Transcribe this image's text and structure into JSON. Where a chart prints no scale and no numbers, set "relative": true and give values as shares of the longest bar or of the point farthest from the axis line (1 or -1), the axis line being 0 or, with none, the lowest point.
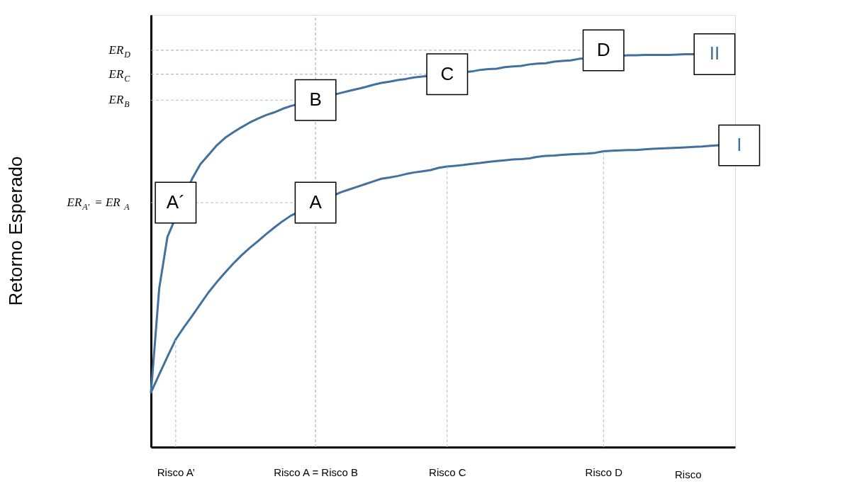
{
  "chart_data": {
    "type": "line",
    "relative": true,
    "xlabel": "Risco",
    "categories": [
      null,
      null,
      null,
      "Risco A’",
      null,
      null,
      null,
      null,
      null,
      null,
      null,
      null,
      null,
      null,
      null,
      null,
      null,
      null,
      null,
      null,
      "Risco A = Risco B",
      null,
      null,
      null,
      null,
      null,
      null,
      null,
      null,
      null,
      null,
      null,
      null,
      null,
      null,
      null,
      "Risco C",
      null,
      null,
      null,
      null,
      null,
      null,
      null,
      null,
      null,
      null,
      null,
      null,
      null,
      null,
      null,
      null,
      null,
      null,
      "Risco D",
      null,
      null,
      null,
      null,
      null,
      null,
      null,
      null,
      null,
      null,
      null,
      null,
      null,
      null,
      null,
      null
    ],
    "grid": false,
    "legend": false,
    "marker": "none",
    "line_style": "solid",
    "series": [
      {
        "name": "II",
        "color": "#41719c",
        "values": [
          0.139,
          0.404,
          0.535,
          null,
          null,
          0.683,
          0.72,
          0.744,
          0.768,
          0.787,
          0.801,
          0.814,
          0.826,
          0.836,
          0.845,
          0.852,
          0.861,
          0.868,
          null,
          null,
          null,
          null,
          null,
          0.901,
          0.906,
          0.911,
          0.916,
          0.922,
          0.927,
          0.93,
          0.934,
          0.937,
          0.941,
          0.943,
          null,
          null,
          null,
          null,
          null,
          0.956,
          0.96,
          0.962,
          0.963,
          0.967,
          0.969,
          0.97,
          0.974,
          0.976,
          0.977,
          0.981,
          0.983,
          0.984,
          0.988,
          null,
          null,
          null,
          null,
          null,
          0.997,
          0.997,
          0.998,
          0.998,
          0.998,
          0.998,
          0.999,
          1,
          1,
          null,
          null,
          null,
          null,
          null
        ]
      },
      {
        "name": "I",
        "color": "#41719c",
        "values": [
          0.139,
          0.185,
          0.23,
          0.274,
          0.305,
          0.334,
          0.364,
          0.394,
          0.42,
          0.444,
          0.467,
          0.488,
          0.507,
          0.524,
          0.542,
          0.559,
          0.575,
          0.589,
          null,
          null,
          null,
          null,
          null,
          0.648,
          0.655,
          0.662,
          0.669,
          0.676,
          0.683,
          0.686,
          0.69,
          0.695,
          0.699,
          0.702,
          0.705,
          0.711,
          0.714,
          0.716,
          0.718,
          0.721,
          0.723,
          0.726,
          0.728,
          0.73,
          0.732,
          0.733,
          0.735,
          0.739,
          0.741,
          0.742,
          0.744,
          0.745,
          0.746,
          0.747,
          0.749,
          0.753,
          0.754,
          0.755,
          0.756,
          0.756,
          0.758,
          0.759,
          0.76,
          0.761,
          0.762,
          0.763,
          0.764,
          0.765,
          0.767,
          0.768,
          null,
          null
        ]
      }
    ],
    "ref_lines": [
      {
        "axis": "x",
        "value": "Risco A’",
        "color": "#9dc3e6",
        "line_style": "dashed"
      },
      {
        "axis": "x",
        "value": "Risco A = Risco B",
        "color": "#a6a6a6",
        "line_style": "dashed"
      },
      {
        "axis": "x",
        "value": "Risco C",
        "color": "#9dc3e6",
        "line_style": "dashed"
      },
      {
        "axis": "x",
        "value": "Risco D",
        "color": "#9dc3e6",
        "line_style": "dashed"
      },
      {
        "axis": "y",
        "value": 1.01,
        "label": "ER$_{D}$",
        "color": "#8faadc",
        "line_style": "dashed"
      },
      {
        "axis": "y",
        "value": 0.949,
        "label": "ER$_{C}$",
        "color": "#8faadc",
        "line_style": "dashed"
      },
      {
        "axis": "y",
        "value": 0.883,
        "label": "ER$_{B}$",
        "color": "#9dc3e6",
        "line_style": "dashed"
      },
      {
        "axis": "y",
        "value": 0.622,
        "label": "ER$_{A′}$ = ER$_{A}$",
        "color": "#9dc3e6",
        "line_style": "dashed"
      }
    ],
    "annotations": [
      "Retorno Esperado",
      {
        "text": "A´",
        "x": "Risco A’",
        "y": 0.622
      },
      {
        "text": "A",
        "x": "Risco A = Risco B",
        "y": 0.622
      },
      {
        "text": "B",
        "x": "Risco A = Risco B",
        "y": 0.883
      },
      {
        "text": "C",
        "x": "Risco C",
        "y": 0.949
      },
      {
        "text": "D",
        "x": "Risco D",
        "y": 1.01
      }
    ]
  }
}
